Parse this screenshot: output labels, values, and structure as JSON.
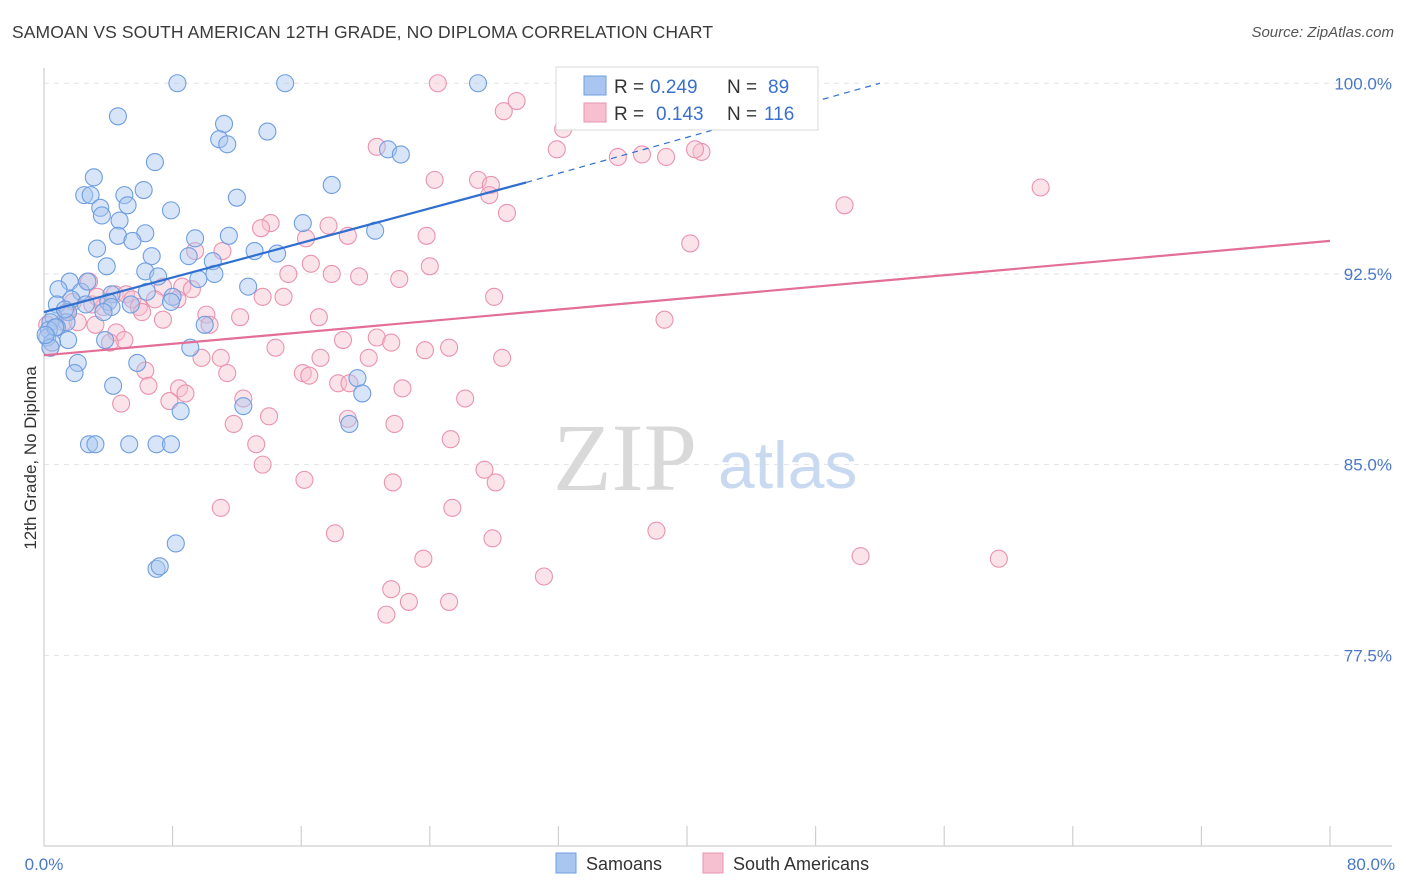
{
  "header": {
    "title": "SAMOAN VS SOUTH AMERICAN 12TH GRADE, NO DIPLOMA CORRELATION CHART",
    "source": "Source: ZipAtlas.com"
  },
  "watermark": {
    "zip": "ZIP",
    "atlas": "atlas"
  },
  "legend": {
    "r_label": "R =",
    "n_label": "N =",
    "entries": [
      {
        "r": "0.249",
        "n": "89"
      },
      {
        "r": "0.143",
        "n": "116"
      }
    ]
  },
  "bottom_legend": {
    "samoans": "Samoans",
    "south_americans": "South Americans"
  },
  "colors": {
    "samoan_fill": "#a9c6f0",
    "samoan_stroke": "#6f9ee0",
    "samoan_line": "#2f6fd0",
    "south_fill": "#f6c0d0",
    "south_stroke": "#ea93b0",
    "south_line": "#e36e98",
    "tick_label": "#4a78c8",
    "grid": "#e3e3e3"
  },
  "chart_data": {
    "type": "scatter",
    "title": "SAMOAN VS SOUTH AMERICAN 12TH GRADE, NO DIPLOMA CORRELATION CHART",
    "xlabel": "",
    "ylabel": "12th Grade, No Diploma",
    "xlim": [
      0,
      80
    ],
    "ylim": [
      70,
      100.6
    ],
    "x_tick_labels": [
      "0.0%",
      "80.0%"
    ],
    "y_ticks": [
      77.5,
      85.0,
      92.5,
      100.0
    ],
    "y_tick_labels": [
      "77.5%",
      "85.0%",
      "92.5%",
      "100.0%"
    ],
    "grid": true,
    "legend_position": "top-center",
    "series": [
      {
        "name": "Samoans",
        "r": 0.249,
        "n": 89,
        "trend": {
          "x0": 0,
          "y0": 91.0,
          "x1": 30,
          "y1": 96.1,
          "dash_to_x": 52,
          "dash_to_y": 100.0
        },
        "points": [
          [
            8.3,
            100
          ],
          [
            15,
            100
          ],
          [
            27,
            100
          ],
          [
            4.6,
            98.7
          ],
          [
            11.2,
            98.4
          ],
          [
            13.9,
            98.1
          ],
          [
            10.9,
            97.8
          ],
          [
            11.4,
            97.6
          ],
          [
            21.4,
            97.4
          ],
          [
            22.2,
            97.2
          ],
          [
            6.9,
            96.9
          ],
          [
            3.1,
            96.3
          ],
          [
            17.9,
            96.0
          ],
          [
            2.5,
            95.6
          ],
          [
            2.9,
            95.6
          ],
          [
            5.0,
            95.6
          ],
          [
            6.2,
            95.8
          ],
          [
            5.2,
            95.2
          ],
          [
            3.5,
            95.1
          ],
          [
            7.9,
            95.0
          ],
          [
            3.6,
            94.8
          ],
          [
            4.7,
            94.6
          ],
          [
            20.6,
            94.2
          ],
          [
            11.5,
            94.0
          ],
          [
            4.6,
            94.0
          ],
          [
            6.3,
            94.1
          ],
          [
            5.5,
            93.8
          ],
          [
            3.3,
            93.5
          ],
          [
            13.1,
            93.4
          ],
          [
            6.7,
            93.2
          ],
          [
            9.0,
            93.2
          ],
          [
            10.5,
            93.0
          ],
          [
            3.9,
            92.8
          ],
          [
            6.3,
            92.6
          ],
          [
            7.1,
            92.4
          ],
          [
            10.6,
            92.5
          ],
          [
            9.6,
            92.3
          ],
          [
            1.6,
            92.2
          ],
          [
            0.9,
            91.9
          ],
          [
            12.7,
            92.0
          ],
          [
            2.3,
            91.8
          ],
          [
            4.2,
            91.7
          ],
          [
            8.0,
            91.6
          ],
          [
            1.7,
            91.5
          ],
          [
            0.8,
            91.3
          ],
          [
            2.6,
            91.3
          ],
          [
            4.0,
            91.4
          ],
          [
            5.4,
            91.3
          ],
          [
            4.2,
            91.2
          ],
          [
            7.9,
            91.4
          ],
          [
            1.5,
            91.0
          ],
          [
            0.6,
            90.8
          ],
          [
            3.7,
            91.0
          ],
          [
            0.4,
            90.6
          ],
          [
            1.4,
            90.6
          ],
          [
            10.0,
            90.5
          ],
          [
            0.8,
            90.4
          ],
          [
            0.3,
            90.3
          ],
          [
            0.2,
            90.0
          ],
          [
            1.5,
            89.9
          ],
          [
            0.5,
            89.8
          ],
          [
            0.4,
            89.6
          ],
          [
            9.1,
            89.6
          ],
          [
            2.1,
            89.0
          ],
          [
            5.8,
            89.0
          ],
          [
            1.9,
            88.6
          ],
          [
            19.5,
            88.4
          ],
          [
            4.3,
            88.1
          ],
          [
            19.8,
            87.8
          ],
          [
            12.4,
            87.3
          ],
          [
            8.5,
            87.1
          ],
          [
            19.0,
            86.6
          ],
          [
            2.8,
            85.8
          ],
          [
            3.2,
            85.8
          ],
          [
            5.3,
            85.8
          ],
          [
            7.0,
            85.8
          ],
          [
            7.9,
            85.8
          ],
          [
            8.2,
            81.9
          ],
          [
            7.0,
            80.9
          ],
          [
            7.2,
            81.0
          ],
          [
            14.5,
            93.3
          ],
          [
            12.0,
            95.5
          ],
          [
            16.1,
            94.5
          ],
          [
            9.4,
            93.9
          ],
          [
            2.7,
            92.2
          ],
          [
            6.4,
            91.8
          ],
          [
            1.3,
            91.1
          ],
          [
            0.7,
            90.4
          ],
          [
            3.8,
            89.9
          ],
          [
            0.1,
            90.1
          ]
        ]
      },
      {
        "name": "South Americans",
        "r": 0.143,
        "n": 116,
        "trend": {
          "x0": 0,
          "y0": 89.3,
          "x1": 80,
          "y1": 93.8
        },
        "points": [
          [
            24.5,
            100
          ],
          [
            32.5,
            100
          ],
          [
            29.4,
            99.3
          ],
          [
            28.6,
            98.9
          ],
          [
            36.5,
            98.8
          ],
          [
            32.3,
            98.2
          ],
          [
            20.7,
            97.5
          ],
          [
            31.9,
            97.4
          ],
          [
            40.9,
            97.3
          ],
          [
            35.7,
            97.1
          ],
          [
            37.2,
            97.2
          ],
          [
            38.7,
            97.1
          ],
          [
            40.5,
            97.4
          ],
          [
            27.0,
            96.2
          ],
          [
            24.3,
            96.2
          ],
          [
            27.8,
            96.0
          ],
          [
            62.0,
            95.9
          ],
          [
            27.7,
            95.6
          ],
          [
            49.8,
            95.2
          ],
          [
            28.8,
            94.9
          ],
          [
            14.1,
            94.5
          ],
          [
            17.7,
            94.4
          ],
          [
            13.5,
            94.3
          ],
          [
            40.2,
            93.7
          ],
          [
            18.9,
            94.0
          ],
          [
            23.8,
            94.0
          ],
          [
            16.3,
            93.9
          ],
          [
            11.1,
            93.4
          ],
          [
            9.4,
            93.4
          ],
          [
            16.6,
            92.9
          ],
          [
            24.0,
            92.8
          ],
          [
            15.2,
            92.5
          ],
          [
            17.9,
            92.5
          ],
          [
            19.6,
            92.4
          ],
          [
            22.1,
            92.3
          ],
          [
            2.8,
            92.2
          ],
          [
            7.4,
            92.0
          ],
          [
            8.6,
            92.0
          ],
          [
            9.2,
            91.9
          ],
          [
            4.4,
            91.7
          ],
          [
            5.1,
            91.7
          ],
          [
            13.6,
            91.6
          ],
          [
            14.9,
            91.6
          ],
          [
            28.0,
            91.6
          ],
          [
            5.5,
            91.5
          ],
          [
            6.9,
            91.5
          ],
          [
            1.8,
            91.4
          ],
          [
            8.3,
            91.5
          ],
          [
            3.0,
            91.3
          ],
          [
            5.9,
            91.2
          ],
          [
            3.7,
            91.2
          ],
          [
            1.4,
            91.0
          ],
          [
            10.1,
            90.9
          ],
          [
            12.2,
            90.8
          ],
          [
            17.1,
            90.8
          ],
          [
            38.6,
            90.7
          ],
          [
            7.4,
            90.7
          ],
          [
            1.2,
            90.6
          ],
          [
            0.2,
            90.5
          ],
          [
            3.2,
            90.5
          ],
          [
            10.3,
            90.5
          ],
          [
            4.5,
            90.2
          ],
          [
            20.7,
            90.0
          ],
          [
            18.6,
            89.9
          ],
          [
            5.0,
            89.9
          ],
          [
            21.6,
            89.8
          ],
          [
            14.4,
            89.6
          ],
          [
            23.7,
            89.5
          ],
          [
            25.2,
            89.6
          ],
          [
            28.5,
            89.2
          ],
          [
            17.2,
            89.2
          ],
          [
            20.2,
            89.2
          ],
          [
            9.8,
            89.2
          ],
          [
            11.0,
            89.2
          ],
          [
            16.1,
            88.6
          ],
          [
            16.5,
            88.5
          ],
          [
            18.3,
            88.2
          ],
          [
            6.3,
            88.7
          ],
          [
            4.1,
            89.8
          ],
          [
            11.4,
            88.6
          ],
          [
            6.5,
            88.1
          ],
          [
            8.4,
            88.0
          ],
          [
            19.0,
            88.2
          ],
          [
            22.3,
            88.0
          ],
          [
            8.8,
            87.8
          ],
          [
            12.4,
            87.6
          ],
          [
            26.2,
            87.6
          ],
          [
            7.8,
            87.5
          ],
          [
            4.8,
            87.4
          ],
          [
            14.0,
            86.9
          ],
          [
            18.9,
            86.8
          ],
          [
            21.8,
            86.6
          ],
          [
            11.8,
            86.6
          ],
          [
            25.3,
            86.0
          ],
          [
            13.2,
            85.8
          ],
          [
            13.6,
            85.0
          ],
          [
            27.4,
            84.8
          ],
          [
            16.2,
            84.4
          ],
          [
            21.7,
            84.3
          ],
          [
            28.1,
            84.3
          ],
          [
            11.0,
            83.3
          ],
          [
            25.4,
            83.3
          ],
          [
            38.1,
            82.4
          ],
          [
            18.1,
            82.3
          ],
          [
            27.9,
            82.1
          ],
          [
            50.8,
            81.4
          ],
          [
            59.4,
            81.3
          ],
          [
            23.6,
            81.3
          ],
          [
            31.1,
            80.6
          ],
          [
            21.6,
            80.1
          ],
          [
            25.2,
            79.6
          ],
          [
            22.7,
            79.6
          ],
          [
            21.3,
            79.1
          ],
          [
            0.4,
            89.6
          ],
          [
            2.1,
            90.6
          ],
          [
            6.1,
            91.0
          ],
          [
            3.3,
            91.6
          ]
        ]
      }
    ]
  }
}
